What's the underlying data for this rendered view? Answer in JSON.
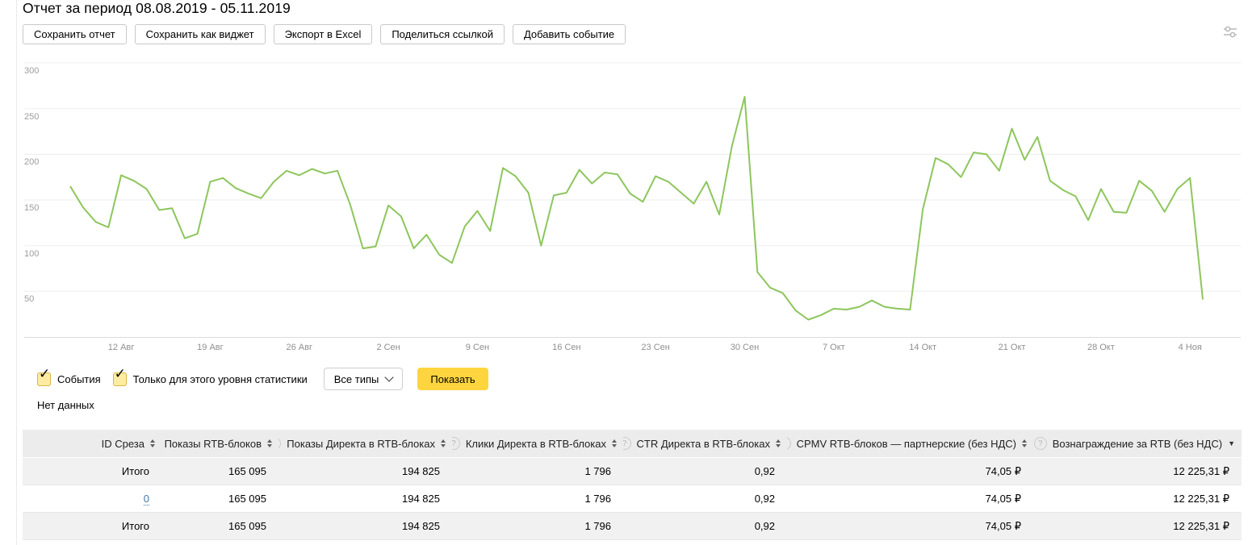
{
  "page": {
    "title": "Отчет за период 08.08.2019 - 05.11.2019"
  },
  "toolbar": {
    "buttons": [
      {
        "name": "save-report-button",
        "label": "Сохранить отчет"
      },
      {
        "name": "save-as-widget-button",
        "label": "Сохранить как виджет"
      },
      {
        "name": "export-excel-button",
        "label": "Экспорт в Excel"
      },
      {
        "name": "share-link-button",
        "label": "Поделиться ссылкой"
      },
      {
        "name": "add-event-button",
        "label": "Добавить событие"
      }
    ]
  },
  "chart_data": {
    "type": "line",
    "title": "",
    "grid": true,
    "ylim": [
      0,
      300
    ],
    "y_ticks": [
      300,
      250,
      200,
      150,
      100,
      50
    ],
    "x_tick_labels": [
      "12 Авг",
      "19 Авг",
      "26 Авг",
      "2 Сен",
      "9 Сен",
      "16 Сен",
      "23 Сен",
      "30 Сен",
      "7 Окт",
      "14 Окт",
      "21 Окт",
      "28 Окт",
      "4 Ноя"
    ],
    "line_color": "#8dc65c",
    "values": [
      165,
      142,
      126,
      120,
      177,
      171,
      162,
      139,
      141,
      108,
      113,
      170,
      174,
      163,
      157,
      152,
      170,
      182,
      177,
      184,
      179,
      182,
      145,
      97,
      99,
      144,
      132,
      97,
      112,
      90,
      81,
      121,
      138,
      116,
      185,
      176,
      158,
      100,
      155,
      158,
      183,
      168,
      180,
      178,
      157,
      148,
      176,
      170,
      158,
      146,
      170,
      134,
      209,
      263,
      71,
      54,
      48,
      29,
      19,
      24,
      31,
      30,
      33,
      40,
      33,
      31,
      30,
      140,
      196,
      189,
      175,
      202,
      200,
      182,
      228,
      194,
      219,
      171,
      161,
      154,
      128,
      162,
      137,
      136,
      171,
      160,
      137,
      162,
      174,
      41
    ]
  },
  "events_panel": {
    "events_label": "События",
    "level_label": "Только для этого уровня статистики",
    "type_filter_value": "Все типы",
    "show_label": "Показать",
    "no_data": "Нет данных"
  },
  "table": {
    "columns": [
      {
        "label": "ID Среза",
        "help": false,
        "sort": "both"
      },
      {
        "label": "Показы RTB-блоков",
        "help": true,
        "sort": "both"
      },
      {
        "label": "Показы Директа в RTB-блоках",
        "help": true,
        "sort": "both"
      },
      {
        "label": "Клики Директа в RTB-блоках",
        "help": true,
        "sort": "both"
      },
      {
        "label": "CTR Директа в RTB-блоках",
        "help": true,
        "sort": "both"
      },
      {
        "label": "CPMV RTB-блоков — партнерские (без НДС)",
        "help": true,
        "sort": "both"
      },
      {
        "label": "Вознаграждение за RTB (без НДС)",
        "help": true,
        "sort": "desc"
      }
    ],
    "rows": [
      {
        "label": "Итого",
        "is_total": true,
        "is_link": false,
        "values": [
          "165 095",
          "194 825",
          "1 796",
          "0,92",
          "74,05 ₽",
          "12 225,31 ₽"
        ]
      },
      {
        "label": "0",
        "is_total": false,
        "is_link": true,
        "values": [
          "165 095",
          "194 825",
          "1 796",
          "0,92",
          "74,05 ₽",
          "12 225,31 ₽"
        ]
      },
      {
        "label": "Итого",
        "is_total": true,
        "is_link": false,
        "values": [
          "165 095",
          "194 825",
          "1 796",
          "0,92",
          "74,05 ₽",
          "12 225,31 ₽"
        ]
      }
    ]
  }
}
